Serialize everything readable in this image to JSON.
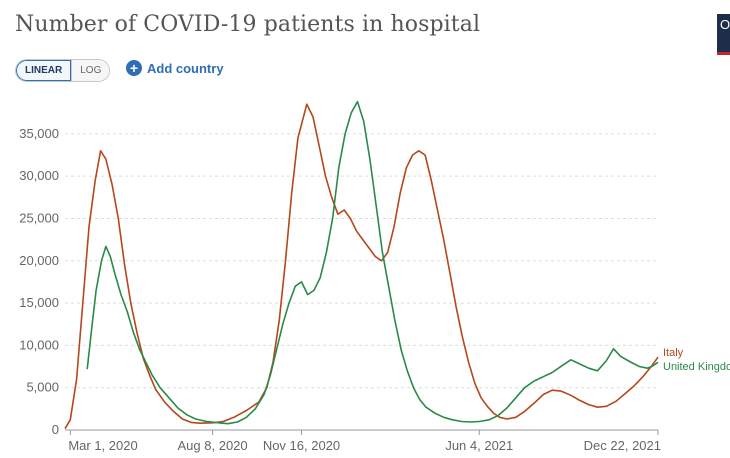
{
  "header": {
    "title": "Number of COVID-19 patients in hospital"
  },
  "controls": {
    "linear_label": "LINEAR",
    "log_label": "LOG",
    "add_country_label": "Add country",
    "add_icon_glyph": "+",
    "active_scale": "linear"
  },
  "logo": {
    "glyph": "O"
  },
  "chart_data": {
    "type": "line",
    "title": "Number of COVID-19 patients in hospital",
    "xlabel": "",
    "ylabel": "",
    "x_ticks": [
      "Mar 1, 2020",
      "Aug 8, 2020",
      "Nov 16, 2020",
      "Jun 4, 2021",
      "Dec 22, 2021"
    ],
    "x_range": [
      "2020-02-24",
      "2021-12-22"
    ],
    "ylim": [
      0,
      39000
    ],
    "y_ticks": [
      0,
      5000,
      10000,
      15000,
      20000,
      25000,
      30000,
      35000
    ],
    "y_tick_labels": [
      "0",
      "5,000",
      "10,000",
      "15,000",
      "20,000",
      "25,000",
      "30,000",
      "35,000"
    ],
    "grid": "horizontal dashed",
    "legend": "end-of-line labels at right",
    "series": [
      {
        "name": "Italy",
        "color": "#b5471c",
        "points": [
          [
            "2020-02-24",
            150
          ],
          [
            "2020-03-01",
            1200
          ],
          [
            "2020-03-08",
            6000
          ],
          [
            "2020-03-15",
            15000
          ],
          [
            "2020-03-22",
            24000
          ],
          [
            "2020-03-29",
            29500
          ],
          [
            "2020-04-04",
            33000
          ],
          [
            "2020-04-10",
            32000
          ],
          [
            "2020-04-17",
            29000
          ],
          [
            "2020-04-24",
            25000
          ],
          [
            "2020-05-01",
            19500
          ],
          [
            "2020-05-08",
            15000
          ],
          [
            "2020-05-15",
            11500
          ],
          [
            "2020-05-22",
            8500
          ],
          [
            "2020-05-29",
            6500
          ],
          [
            "2020-06-05",
            4800
          ],
          [
            "2020-06-15",
            3300
          ],
          [
            "2020-06-25",
            2200
          ],
          [
            "2020-07-05",
            1300
          ],
          [
            "2020-07-15",
            900
          ],
          [
            "2020-07-25",
            800
          ],
          [
            "2020-08-08",
            850
          ],
          [
            "2020-08-20",
            1000
          ],
          [
            "2020-09-01",
            1500
          ],
          [
            "2020-09-15",
            2300
          ],
          [
            "2020-09-29",
            3300
          ],
          [
            "2020-10-08",
            5000
          ],
          [
            "2020-10-15",
            8000
          ],
          [
            "2020-10-22",
            13000
          ],
          [
            "2020-10-29",
            20000
          ],
          [
            "2020-11-05",
            28000
          ],
          [
            "2020-11-12",
            34500
          ],
          [
            "2020-11-22",
            38500
          ],
          [
            "2020-11-29",
            37000
          ],
          [
            "2020-12-06",
            33500
          ],
          [
            "2020-12-13",
            30000
          ],
          [
            "2020-12-20",
            27500
          ],
          [
            "2020-12-27",
            25500
          ],
          [
            "2021-01-03",
            26000
          ],
          [
            "2021-01-10",
            25000
          ],
          [
            "2021-01-17",
            23500
          ],
          [
            "2021-01-24",
            22500
          ],
          [
            "2021-01-31",
            21500
          ],
          [
            "2021-02-07",
            20500
          ],
          [
            "2021-02-14",
            20000
          ],
          [
            "2021-02-21",
            21000
          ],
          [
            "2021-02-28",
            24000
          ],
          [
            "2021-03-07",
            28000
          ],
          [
            "2021-03-14",
            31000
          ],
          [
            "2021-03-21",
            32500
          ],
          [
            "2021-03-28",
            33000
          ],
          [
            "2021-04-04",
            32500
          ],
          [
            "2021-04-11",
            29500
          ],
          [
            "2021-04-18",
            26000
          ],
          [
            "2021-04-25",
            22500
          ],
          [
            "2021-05-02",
            18500
          ],
          [
            "2021-05-09",
            14500
          ],
          [
            "2021-05-16",
            11000
          ],
          [
            "2021-05-23",
            8000
          ],
          [
            "2021-05-30",
            5500
          ],
          [
            "2021-06-06",
            3800
          ],
          [
            "2021-06-13",
            2800
          ],
          [
            "2021-06-20",
            2000
          ],
          [
            "2021-06-27",
            1500
          ],
          [
            "2021-07-05",
            1300
          ],
          [
            "2021-07-15",
            1500
          ],
          [
            "2021-07-25",
            2200
          ],
          [
            "2021-08-05",
            3200
          ],
          [
            "2021-08-15",
            4200
          ],
          [
            "2021-08-25",
            4700
          ],
          [
            "2021-09-04",
            4600
          ],
          [
            "2021-09-15",
            4100
          ],
          [
            "2021-09-25",
            3500
          ],
          [
            "2021-10-05",
            3000
          ],
          [
            "2021-10-15",
            2700
          ],
          [
            "2021-10-25",
            2800
          ],
          [
            "2021-11-05",
            3400
          ],
          [
            "2021-11-15",
            4300
          ],
          [
            "2021-11-25",
            5200
          ],
          [
            "2021-12-05",
            6300
          ],
          [
            "2021-12-15",
            7600
          ],
          [
            "2021-12-22",
            8600
          ]
        ]
      },
      {
        "name": "United Kingdom",
        "color": "#2a8a4a",
        "points": [
          [
            "2020-03-20",
            7200
          ],
          [
            "2020-03-25",
            12000
          ],
          [
            "2020-03-30",
            16500
          ],
          [
            "2020-04-05",
            20000
          ],
          [
            "2020-04-10",
            21700
          ],
          [
            "2020-04-15",
            20500
          ],
          [
            "2020-04-20",
            18500
          ],
          [
            "2020-04-27",
            16000
          ],
          [
            "2020-05-04",
            14000
          ],
          [
            "2020-05-11",
            11500
          ],
          [
            "2020-05-18",
            9500
          ],
          [
            "2020-05-25",
            8000
          ],
          [
            "2020-06-01",
            6500
          ],
          [
            "2020-06-10",
            5000
          ],
          [
            "2020-06-20",
            3800
          ],
          [
            "2020-06-30",
            2600
          ],
          [
            "2020-07-10",
            1800
          ],
          [
            "2020-07-20",
            1300
          ],
          [
            "2020-08-01",
            1000
          ],
          [
            "2020-08-15",
            850
          ],
          [
            "2020-08-25",
            750
          ],
          [
            "2020-09-05",
            950
          ],
          [
            "2020-09-15",
            1500
          ],
          [
            "2020-09-25",
            2500
          ],
          [
            "2020-10-05",
            4200
          ],
          [
            "2020-10-12",
            6500
          ],
          [
            "2020-10-19",
            9500
          ],
          [
            "2020-10-26",
            12500
          ],
          [
            "2020-11-02",
            15000
          ],
          [
            "2020-11-09",
            17000
          ],
          [
            "2020-11-16",
            17500
          ],
          [
            "2020-11-23",
            16000
          ],
          [
            "2020-11-30",
            16500
          ],
          [
            "2020-12-07",
            18000
          ],
          [
            "2020-12-14",
            21000
          ],
          [
            "2020-12-21",
            25000
          ],
          [
            "2020-12-28",
            31000
          ],
          [
            "2021-01-04",
            35000
          ],
          [
            "2021-01-11",
            37500
          ],
          [
            "2021-01-18",
            38800
          ],
          [
            "2021-01-25",
            36500
          ],
          [
            "2021-02-01",
            32000
          ],
          [
            "2021-02-08",
            26500
          ],
          [
            "2021-02-15",
            21000
          ],
          [
            "2021-02-22",
            17000
          ],
          [
            "2021-03-01",
            13000
          ],
          [
            "2021-03-08",
            9500
          ],
          [
            "2021-03-15",
            7000
          ],
          [
            "2021-03-22",
            5000
          ],
          [
            "2021-03-29",
            3600
          ],
          [
            "2021-04-05",
            2700
          ],
          [
            "2021-04-15",
            2000
          ],
          [
            "2021-04-25",
            1500
          ],
          [
            "2021-05-05",
            1200
          ],
          [
            "2021-05-15",
            1000
          ],
          [
            "2021-05-25",
            950
          ],
          [
            "2021-06-04",
            1000
          ],
          [
            "2021-06-15",
            1200
          ],
          [
            "2021-06-25",
            1700
          ],
          [
            "2021-07-05",
            2600
          ],
          [
            "2021-07-15",
            3800
          ],
          [
            "2021-07-25",
            5000
          ],
          [
            "2021-08-05",
            5800
          ],
          [
            "2021-08-15",
            6300
          ],
          [
            "2021-08-25",
            6800
          ],
          [
            "2021-09-05",
            7600
          ],
          [
            "2021-09-15",
            8300
          ],
          [
            "2021-09-25",
            7800
          ],
          [
            "2021-10-05",
            7300
          ],
          [
            "2021-10-15",
            7000
          ],
          [
            "2021-10-25",
            8200
          ],
          [
            "2021-11-02",
            9600
          ],
          [
            "2021-11-10",
            8700
          ],
          [
            "2021-11-20",
            8100
          ],
          [
            "2021-12-01",
            7500
          ],
          [
            "2021-12-10",
            7300
          ],
          [
            "2021-12-15",
            7500
          ],
          [
            "2021-12-22",
            8000
          ]
        ]
      }
    ]
  }
}
